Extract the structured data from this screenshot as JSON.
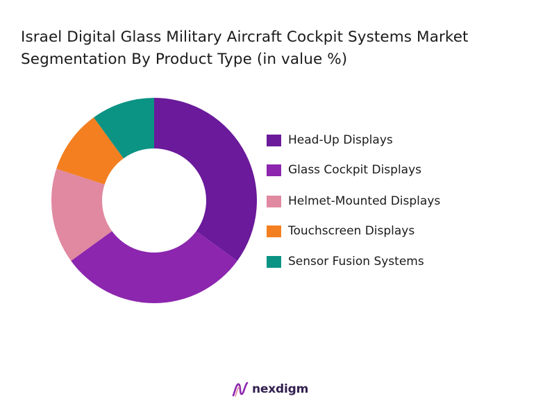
{
  "chart_data": {
    "type": "pie",
    "variant": "donut",
    "title": "Israel Digital Glass Military Aircraft Cockpit Systems Market\nSegmentation By Product Type (in value %)",
    "categories": [
      "Head-Up Displays",
      "Glass Cockpit Displays",
      "Helmet-Mounted Displays",
      "Touchscreen Displays",
      "Sensor Fusion Systems"
    ],
    "values": [
      35,
      30,
      15,
      10,
      10
    ],
    "colors": [
      "#6a1a9a",
      "#8c26ae",
      "#e089a0",
      "#f37f20",
      "#0b9384"
    ],
    "legend_position": "right"
  },
  "brand": {
    "name": "nexdigm",
    "icon": "nexdigm-logo-icon"
  }
}
